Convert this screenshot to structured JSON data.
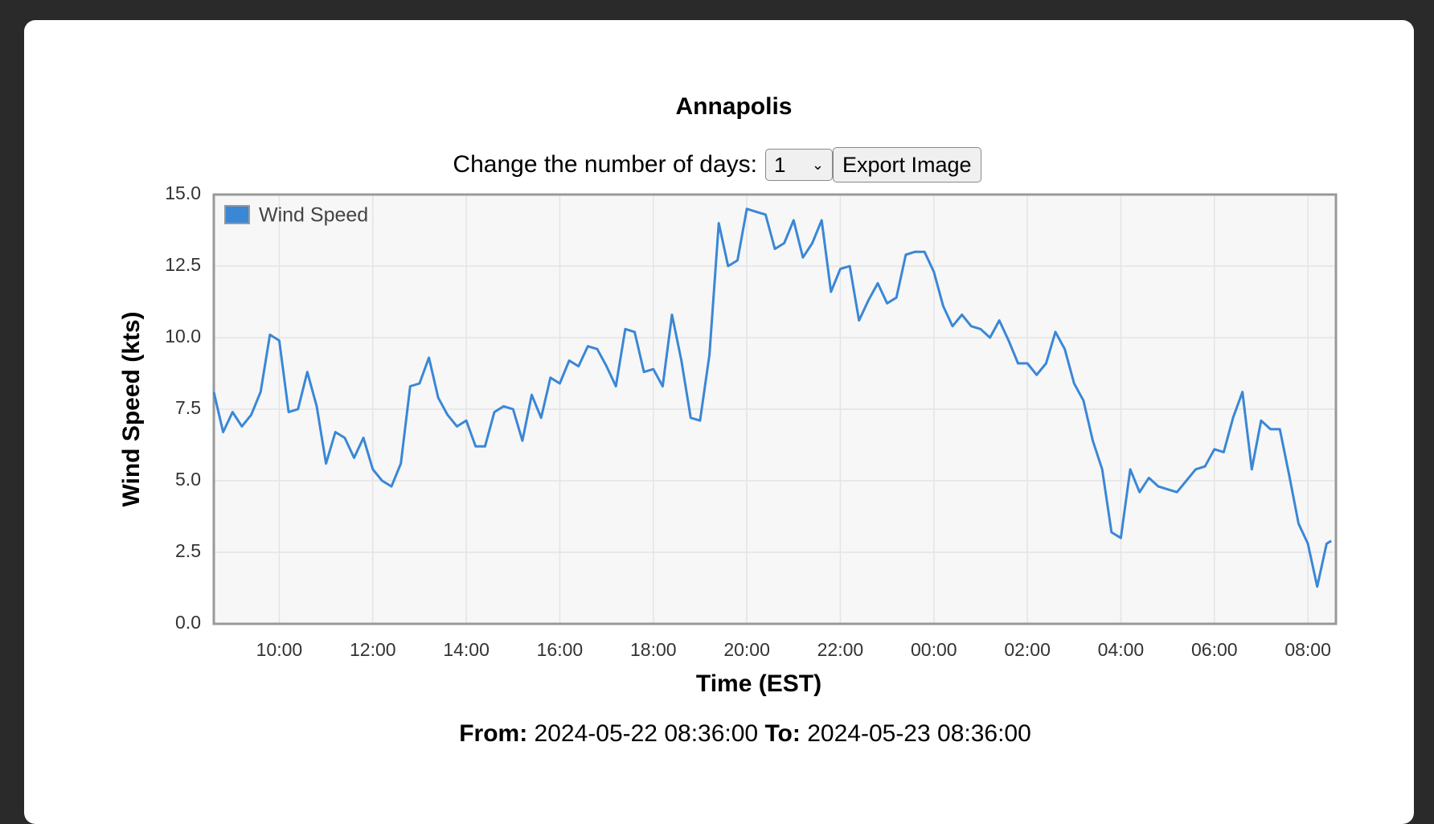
{
  "chart_data": {
    "type": "line",
    "title": "Annapolis",
    "controls": {
      "label": "Change the number of days:",
      "select_value": "1",
      "button": "Export Image"
    },
    "xlabel": "Time (EST)",
    "ylabel": "Wind Speed (kts)",
    "footer": {
      "from_label": "From:",
      "from": "2024-05-22 08:36:00",
      "to_label": "To:",
      "to": "2024-05-23 08:36:00"
    },
    "xlim": [
      "2024-05-22 08:36",
      "2024-05-23 08:36"
    ],
    "xticks": [
      {
        "value": "2024-05-22 10:00",
        "label": "10:00"
      },
      {
        "value": "2024-05-22 12:00",
        "label": "12:00"
      },
      {
        "value": "2024-05-22 14:00",
        "label": "14:00"
      },
      {
        "value": "2024-05-22 16:00",
        "label": "16:00"
      },
      {
        "value": "2024-05-22 18:00",
        "label": "18:00"
      },
      {
        "value": "2024-05-22 20:00",
        "label": "20:00"
      },
      {
        "value": "2024-05-22 22:00",
        "label": "22:00"
      },
      {
        "value": "2024-05-23 00:00",
        "label": "00:00"
      },
      {
        "value": "2024-05-23 02:00",
        "label": "02:00"
      },
      {
        "value": "2024-05-23 04:00",
        "label": "04:00"
      },
      {
        "value": "2024-05-23 06:00",
        "label": "06:00"
      },
      {
        "value": "2024-05-23 08:00",
        "label": "08:00"
      }
    ],
    "ylim": [
      0,
      15
    ],
    "yticks": [
      {
        "value": 0,
        "label": "0.0"
      },
      {
        "value": 2.5,
        "label": "2.5"
      },
      {
        "value": 5,
        "label": "5.0"
      },
      {
        "value": 7.5,
        "label": "7.5"
      },
      {
        "value": 10,
        "label": "10.0"
      },
      {
        "value": 12.5,
        "label": "12.5"
      },
      {
        "value": 15,
        "label": "15.0"
      }
    ],
    "grid": true,
    "legend": "upper left",
    "x": [
      "2024-05-22 08:36",
      "2024-05-22 08:48",
      "2024-05-22 09:00",
      "2024-05-22 09:12",
      "2024-05-22 09:24",
      "2024-05-22 09:36",
      "2024-05-22 09:48",
      "2024-05-22 10:00",
      "2024-05-22 10:12",
      "2024-05-22 10:24",
      "2024-05-22 10:36",
      "2024-05-22 10:48",
      "2024-05-22 11:00",
      "2024-05-22 11:12",
      "2024-05-22 11:24",
      "2024-05-22 11:36",
      "2024-05-22 11:48",
      "2024-05-22 12:00",
      "2024-05-22 12:12",
      "2024-05-22 12:24",
      "2024-05-22 12:36",
      "2024-05-22 12:48",
      "2024-05-22 13:00",
      "2024-05-22 13:12",
      "2024-05-22 13:24",
      "2024-05-22 13:36",
      "2024-05-22 13:48",
      "2024-05-22 14:00",
      "2024-05-22 14:12",
      "2024-05-22 14:24",
      "2024-05-22 14:36",
      "2024-05-22 14:48",
      "2024-05-22 15:00",
      "2024-05-22 15:12",
      "2024-05-22 15:24",
      "2024-05-22 15:36",
      "2024-05-22 15:48",
      "2024-05-22 16:00",
      "2024-05-22 16:12",
      "2024-05-22 16:24",
      "2024-05-22 16:36",
      "2024-05-22 16:48",
      "2024-05-22 17:00",
      "2024-05-22 17:12",
      "2024-05-22 17:24",
      "2024-05-22 17:36",
      "2024-05-22 17:48",
      "2024-05-22 18:00",
      "2024-05-22 18:12",
      "2024-05-22 18:24",
      "2024-05-22 18:36",
      "2024-05-22 18:48",
      "2024-05-22 19:00",
      "2024-05-22 19:12",
      "2024-05-22 19:24",
      "2024-05-22 19:36",
      "2024-05-22 19:48",
      "2024-05-22 20:00",
      "2024-05-22 20:12",
      "2024-05-22 20:24",
      "2024-05-22 20:36",
      "2024-05-22 20:48",
      "2024-05-22 21:00",
      "2024-05-22 21:12",
      "2024-05-22 21:24",
      "2024-05-22 21:36",
      "2024-05-22 21:48",
      "2024-05-22 22:00",
      "2024-05-22 22:12",
      "2024-05-22 22:24",
      "2024-05-22 22:36",
      "2024-05-22 22:48",
      "2024-05-22 23:00",
      "2024-05-22 23:12",
      "2024-05-22 23:24",
      "2024-05-22 23:36",
      "2024-05-22 23:48",
      "2024-05-23 00:00",
      "2024-05-23 00:12",
      "2024-05-23 00:24",
      "2024-05-23 00:36",
      "2024-05-23 00:48",
      "2024-05-23 01:00",
      "2024-05-23 01:12",
      "2024-05-23 01:24",
      "2024-05-23 01:36",
      "2024-05-23 01:48",
      "2024-05-23 02:00",
      "2024-05-23 02:12",
      "2024-05-23 02:24",
      "2024-05-23 02:36",
      "2024-05-23 02:48",
      "2024-05-23 03:00",
      "2024-05-23 03:12",
      "2024-05-23 03:24",
      "2024-05-23 03:36",
      "2024-05-23 03:48",
      "2024-05-23 04:00",
      "2024-05-23 04:12",
      "2024-05-23 04:24",
      "2024-05-23 04:36",
      "2024-05-23 04:48",
      "2024-05-23 05:00",
      "2024-05-23 05:12",
      "2024-05-23 05:24",
      "2024-05-23 05:36",
      "2024-05-23 05:48",
      "2024-05-23 06:00",
      "2024-05-23 06:12",
      "2024-05-23 06:24",
      "2024-05-23 06:36",
      "2024-05-23 06:48",
      "2024-05-23 07:00",
      "2024-05-23 07:12",
      "2024-05-23 07:24",
      "2024-05-23 07:36",
      "2024-05-23 07:48",
      "2024-05-23 08:00",
      "2024-05-23 08:12",
      "2024-05-23 08:24",
      "2024-05-23 08:30"
    ],
    "series": [
      {
        "name": "Wind Speed",
        "color": "#3a87d6",
        "values": [
          8.1,
          6.7,
          7.4,
          6.9,
          7.3,
          8.1,
          10.1,
          9.9,
          7.4,
          7.5,
          8.8,
          7.6,
          5.6,
          6.7,
          6.5,
          5.8,
          6.5,
          5.4,
          5.0,
          4.8,
          5.6,
          8.3,
          8.4,
          9.3,
          7.9,
          7.3,
          6.9,
          7.1,
          6.2,
          6.2,
          7.4,
          7.6,
          7.5,
          6.4,
          8.0,
          7.2,
          8.6,
          8.4,
          9.2,
          9.0,
          9.7,
          9.6,
          9.0,
          8.3,
          10.3,
          10.2,
          8.8,
          8.9,
          8.3,
          10.8,
          9.2,
          7.2,
          7.1,
          9.4,
          14.0,
          12.5,
          12.7,
          14.5,
          14.4,
          14.3,
          13.1,
          13.3,
          14.1,
          12.8,
          13.3,
          14.1,
          11.6,
          12.4,
          12.5,
          10.6,
          11.3,
          11.9,
          11.2,
          11.4,
          12.9,
          13.0,
          13.0,
          12.3,
          11.1,
          10.4,
          10.8,
          10.4,
          10.3,
          10.0,
          10.6,
          9.9,
          9.1,
          9.1,
          8.7,
          9.1,
          10.2,
          9.6,
          8.4,
          7.8,
          6.4,
          5.4,
          3.2,
          3.0,
          5.4,
          4.6,
          5.1,
          4.8,
          4.7,
          4.6,
          5.0,
          5.4,
          5.5,
          6.1,
          6.0,
          7.2,
          8.1,
          5.4,
          7.1,
          6.8,
          6.8,
          5.2,
          3.5,
          2.8,
          1.3,
          2.8,
          2.9
        ]
      }
    ]
  }
}
